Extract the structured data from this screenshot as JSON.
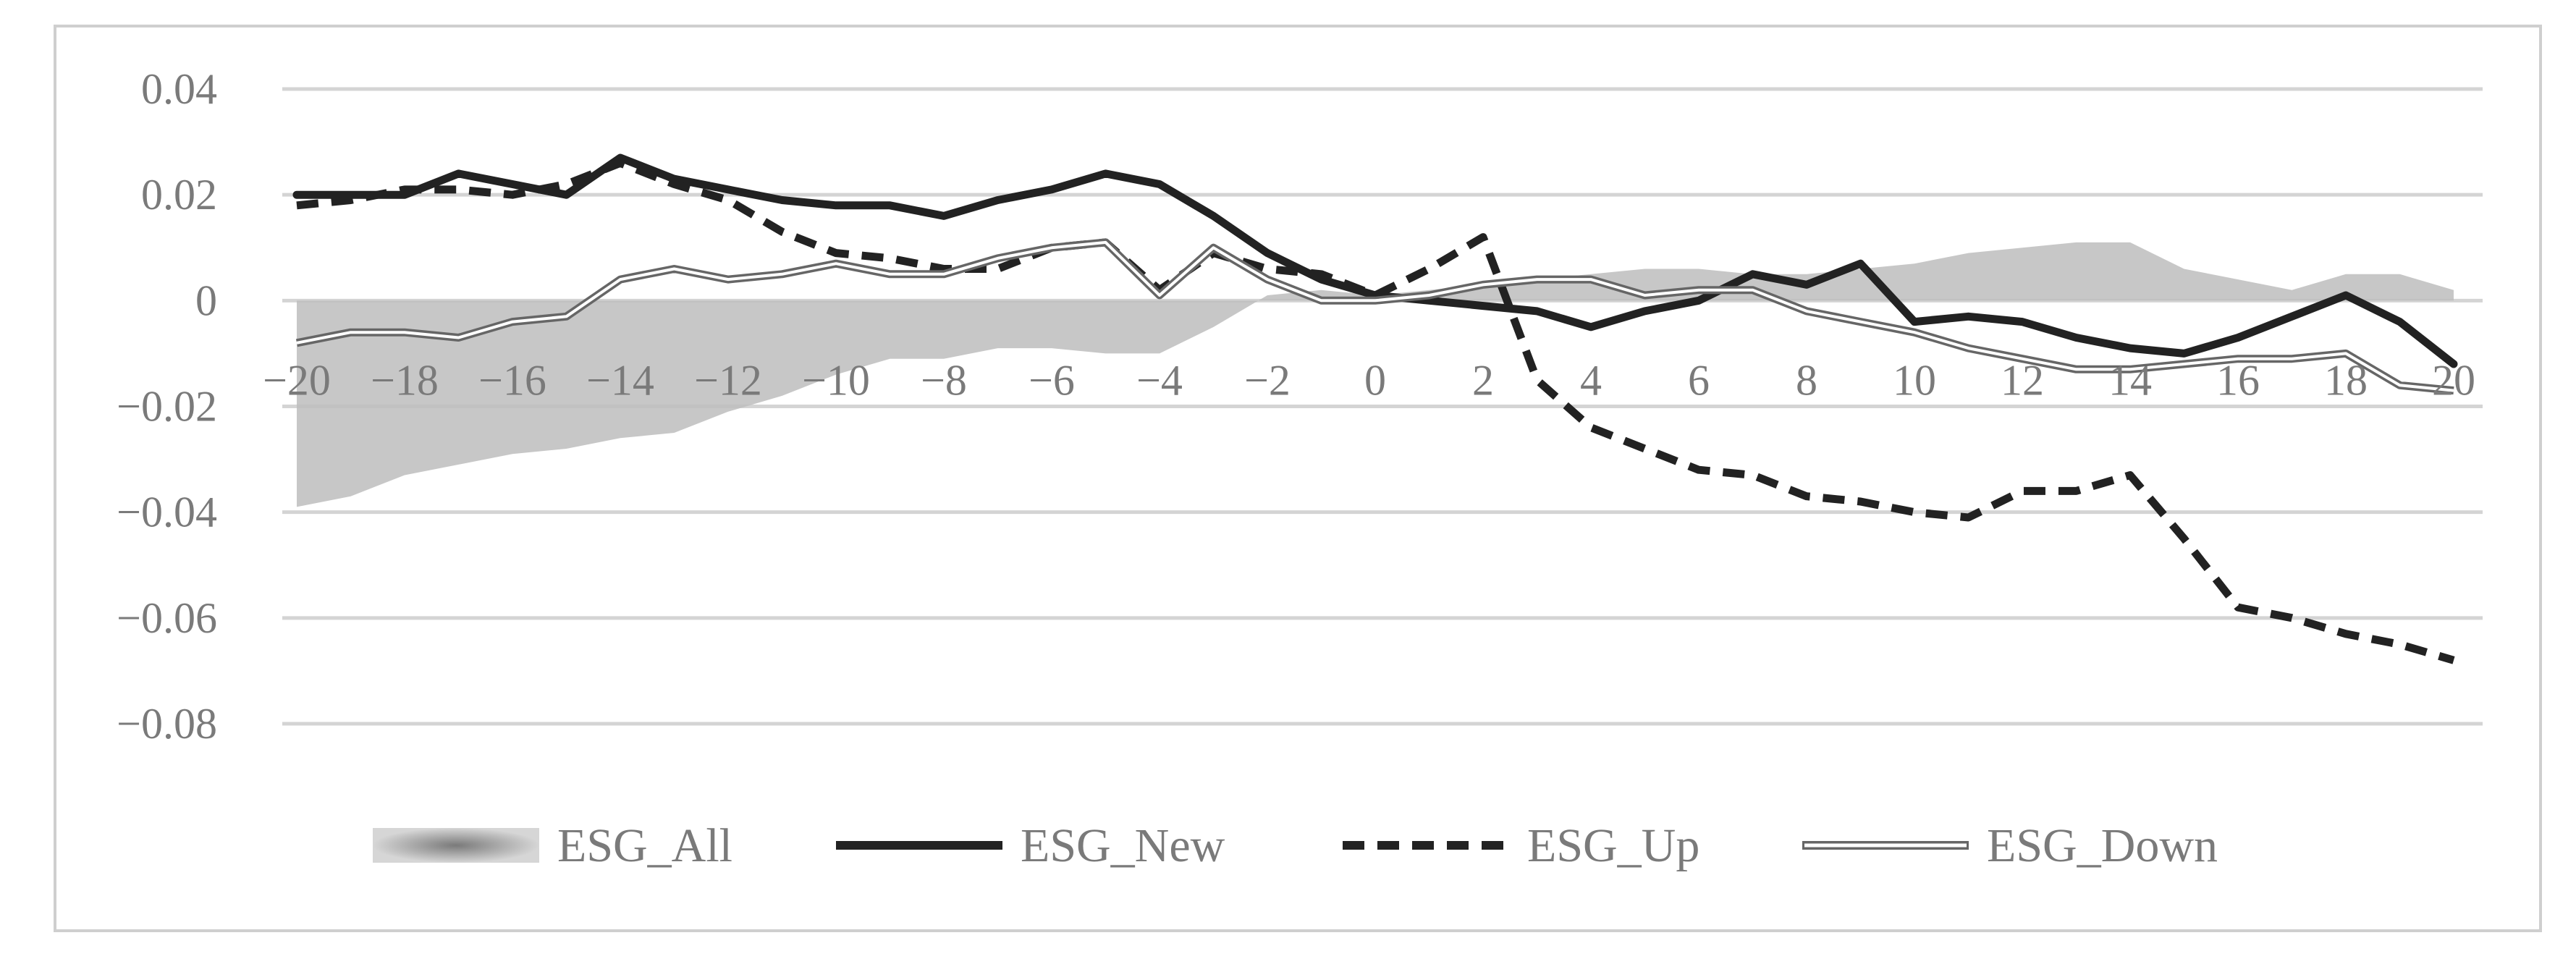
{
  "chart_data": {
    "type": "line",
    "title": "",
    "xlabel": "",
    "ylabel": "",
    "x": [
      -20,
      -19,
      -18,
      -17,
      -16,
      -15,
      -14,
      -13,
      -12,
      -11,
      -10,
      -9,
      -8,
      -7,
      -6,
      -5,
      -4,
      -3,
      -2,
      -1,
      0,
      1,
      2,
      3,
      4,
      5,
      6,
      7,
      8,
      9,
      10,
      11,
      12,
      13,
      14,
      15,
      16,
      17,
      18,
      19,
      20
    ],
    "xlim": [
      -20,
      20
    ],
    "ylim": [
      -0.08,
      0.04
    ],
    "x_ticks": [
      -20,
      -18,
      -16,
      -14,
      -12,
      -10,
      -8,
      -6,
      -4,
      -2,
      0,
      2,
      4,
      6,
      8,
      10,
      12,
      14,
      16,
      18,
      20
    ],
    "x_tick_labels": [
      "−20",
      "−18",
      "−16",
      "−14",
      "−12",
      "−10",
      "−8",
      "−6",
      "−4",
      "−2",
      "0",
      "2",
      "4",
      "6",
      "8",
      "10",
      "12",
      "14",
      "16",
      "18",
      "20"
    ],
    "y_ticks": [
      0.04,
      0.02,
      0,
      -0.02,
      -0.04,
      -0.06,
      -0.08
    ],
    "y_tick_labels": [
      "0.04",
      "0.02",
      "0",
      "−0.02",
      "−0.04",
      "−0.06",
      "−0.08"
    ],
    "grid": true,
    "legend_position": "bottom",
    "series": [
      {
        "name": "ESG_All",
        "style": "area",
        "color": "#bdbdbd",
        "values": [
          -0.039,
          -0.037,
          -0.033,
          -0.031,
          -0.029,
          -0.028,
          -0.026,
          -0.025,
          -0.021,
          -0.018,
          -0.014,
          -0.011,
          -0.011,
          -0.009,
          -0.009,
          -0.01,
          -0.01,
          -0.005,
          0.001,
          0.002,
          0.001,
          0.002,
          0.003,
          0.004,
          0.005,
          0.006,
          0.006,
          0.005,
          0.005,
          0.006,
          0.007,
          0.009,
          0.01,
          0.011,
          0.011,
          0.006,
          0.004,
          0.002,
          0.005,
          0.005,
          0.002
        ]
      },
      {
        "name": "ESG_New",
        "style": "solid",
        "color": "#222222",
        "values": [
          0.02,
          0.02,
          0.02,
          0.024,
          0.022,
          0.02,
          0.027,
          0.023,
          0.021,
          0.019,
          0.018,
          0.018,
          0.016,
          0.019,
          0.021,
          0.024,
          0.022,
          0.016,
          0.009,
          0.004,
          0.001,
          0.0,
          -0.001,
          -0.002,
          -0.005,
          -0.002,
          0.0,
          0.005,
          0.003,
          0.007,
          -0.004,
          -0.003,
          -0.004,
          -0.007,
          -0.009,
          -0.01,
          -0.007,
          -0.003,
          0.001,
          -0.004,
          -0.012
        ]
      },
      {
        "name": "ESG_Up",
        "style": "dashed",
        "color": "#222222",
        "values": [
          0.018,
          0.019,
          0.021,
          0.021,
          0.02,
          0.022,
          0.026,
          0.022,
          0.019,
          0.013,
          0.009,
          0.008,
          0.006,
          0.006,
          0.01,
          0.011,
          0.002,
          0.009,
          0.006,
          0.005,
          0.001,
          0.006,
          0.012,
          -0.015,
          -0.024,
          -0.028,
          -0.032,
          -0.033,
          -0.037,
          -0.038,
          -0.04,
          -0.041,
          -0.036,
          -0.036,
          -0.033,
          -0.045,
          -0.058,
          -0.06,
          -0.063,
          -0.065,
          -0.068
        ]
      },
      {
        "name": "ESG_Down",
        "style": "double",
        "color": "#666666",
        "values": [
          -0.008,
          -0.006,
          -0.006,
          -0.007,
          -0.004,
          -0.003,
          0.004,
          0.006,
          0.004,
          0.005,
          0.007,
          0.005,
          0.005,
          0.008,
          0.01,
          0.011,
          0.001,
          0.01,
          0.004,
          0.0,
          0.0,
          0.001,
          0.003,
          0.004,
          0.004,
          0.001,
          0.002,
          0.002,
          -0.002,
          -0.004,
          -0.006,
          -0.009,
          -0.011,
          -0.013,
          -0.013,
          -0.012,
          -0.011,
          -0.011,
          -0.01,
          -0.016,
          -0.017
        ]
      }
    ]
  }
}
